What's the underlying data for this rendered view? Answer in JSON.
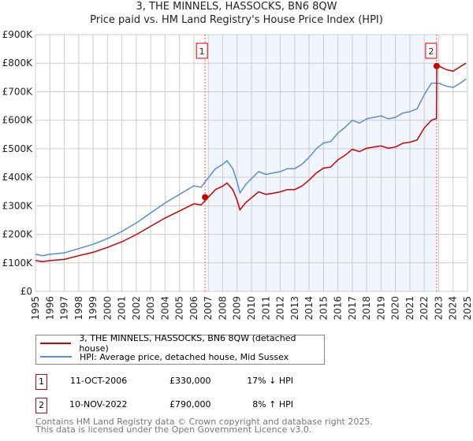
{
  "chart_data": {
    "type": "line",
    "title": "3, THE MINNELS, HASSOCKS, BN6 8QW",
    "subtitle": "Price paid vs. HM Land Registry's House Price Index (HPI)",
    "xlim": [
      1995,
      2025
    ],
    "ylim": [
      0,
      900000
    ],
    "yticks": [
      {
        "v": 0,
        "label": "£0"
      },
      {
        "v": 100000,
        "label": "£100K"
      },
      {
        "v": 200000,
        "label": "£200K"
      },
      {
        "v": 300000,
        "label": "£300K"
      },
      {
        "v": 400000,
        "label": "£400K"
      },
      {
        "v": 500000,
        "label": "£500K"
      },
      {
        "v": 600000,
        "label": "£600K"
      },
      {
        "v": 700000,
        "label": "£700K"
      },
      {
        "v": 800000,
        "label": "£800K"
      },
      {
        "v": 900000,
        "label": "£900K"
      }
    ],
    "xticks": [
      "1995",
      "1996",
      "1997",
      "1998",
      "1999",
      "2000",
      "2001",
      "2002",
      "2003",
      "2004",
      "2005",
      "2006",
      "2007",
      "2008",
      "2009",
      "2010",
      "2011",
      "2012",
      "2013",
      "2014",
      "2015",
      "2016",
      "2017",
      "2018",
      "2019",
      "2020",
      "2021",
      "2022",
      "2023",
      "2024",
      "2025"
    ],
    "grid": true,
    "shaded_range": [
      2007,
      2022.86
    ],
    "x": [
      1995,
      1995.5,
      1996,
      1997,
      1998,
      1999,
      2000,
      2001,
      2002,
      2003,
      2004,
      2005,
      2006,
      2006.5,
      2007,
      2007.5,
      2008,
      2008.3,
      2008.7,
      2009,
      2009.2,
      2009.6,
      2010,
      2010.5,
      2011,
      2011.5,
      2012,
      2012.5,
      2013,
      2013.5,
      2014,
      2014.5,
      2015,
      2015.5,
      2016,
      2016.5,
      2017,
      2017.5,
      2018,
      2018.5,
      2019,
      2019.5,
      2020,
      2020.5,
      2021,
      2021.5,
      2022,
      2022.5,
      2022.85,
      2022.87,
      2023,
      2023.5,
      2024,
      2024.5,
      2024.9
    ],
    "series": [
      {
        "name": "3, THE MINNELS, HASSOCKS, BN6 8QW (detached house)",
        "color": "#cc0000",
        "values": [
          108000,
          104000,
          108000,
          112000,
          125000,
          137000,
          154000,
          174000,
          199000,
          228000,
          257000,
          282000,
          307000,
          303000,
          330000,
          357000,
          369000,
          380000,
          357000,
          320000,
          286000,
          311000,
          328000,
          349000,
          340000,
          344000,
          349000,
          357000,
          357000,
          369000,
          390000,
          415000,
          432000,
          436000,
          461000,
          477000,
          498000,
          490000,
          502000,
          506000,
          510000,
          502000,
          506000,
          519000,
          523000,
          531000,
          573000,
          600000,
          606000,
          790000,
          790000,
          778000,
          772000,
          788000,
          800000
        ]
      },
      {
        "name": "HPI: Average price, detached house, Mid Sussex",
        "color": "#5b8ccc",
        "values": [
          130000,
          125000,
          130000,
          135000,
          150000,
          165000,
          185000,
          210000,
          240000,
          275000,
          310000,
          340000,
          370000,
          365000,
          398000,
          430000,
          445000,
          458000,
          430000,
          385000,
          345000,
          375000,
          395000,
          420000,
          410000,
          415000,
          420000,
          430000,
          430000,
          445000,
          470000,
          500000,
          520000,
          525000,
          555000,
          575000,
          600000,
          590000,
          605000,
          610000,
          615000,
          605000,
          610000,
          625000,
          630000,
          640000,
          690000,
          730000,
          730000,
          730000,
          730000,
          720000,
          715000,
          730000,
          745000
        ]
      }
    ],
    "annotations": [
      {
        "label": "1",
        "x": 2006.78,
        "y": 330000
      },
      {
        "label": "2",
        "x": 2022.86,
        "y": 790000
      }
    ],
    "legend_placement": "below"
  },
  "transactions": [
    {
      "num": "1",
      "date": "11-OCT-2006",
      "price": "£330,000",
      "hpi": "17% ↓ HPI"
    },
    {
      "num": "2",
      "date": "10-NOV-2022",
      "price": "£790,000",
      "hpi": "8% ↑ HPI"
    }
  ],
  "footer": {
    "line1": "Contains HM Land Registry data © Crown copyright and database right 2025.",
    "line2": "This data is licensed under the Open Government Licence v3.0."
  }
}
